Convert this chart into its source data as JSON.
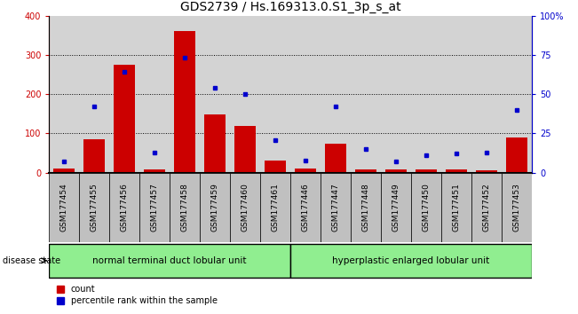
{
  "title": "GDS2739 / Hs.169313.0.S1_3p_s_at",
  "samples": [
    "GSM177454",
    "GSM177455",
    "GSM177456",
    "GSM177457",
    "GSM177458",
    "GSM177459",
    "GSM177460",
    "GSM177461",
    "GSM177446",
    "GSM177447",
    "GSM177448",
    "GSM177449",
    "GSM177450",
    "GSM177451",
    "GSM177452",
    "GSM177453"
  ],
  "counts": [
    10,
    85,
    275,
    8,
    360,
    148,
    118,
    30,
    10,
    75,
    8,
    8,
    8,
    8,
    5,
    90
  ],
  "percentiles": [
    7,
    42,
    64,
    13,
    73,
    54,
    50,
    21,
    8,
    42,
    15,
    7,
    11,
    12,
    13,
    40
  ],
  "group1_label": "normal terminal duct lobular unit",
  "group2_label": "hyperplastic enlarged lobular unit",
  "group1_count": 8,
  "group2_count": 8,
  "bar_color": "#cc0000",
  "dot_color": "#0000cc",
  "left_ylim": [
    0,
    400
  ],
  "right_ylim": [
    0,
    100
  ],
  "left_yticks": [
    0,
    100,
    200,
    300,
    400
  ],
  "right_yticks": [
    0,
    25,
    50,
    75,
    100
  ],
  "right_yticklabels": [
    "0",
    "25",
    "50",
    "75",
    "100%"
  ],
  "plot_bg": "#d3d3d3",
  "xtick_bg": "#c0c0c0",
  "group_color": "#90ee90",
  "title_fontsize": 10,
  "tick_fontsize": 7,
  "sample_fontsize": 6.5
}
